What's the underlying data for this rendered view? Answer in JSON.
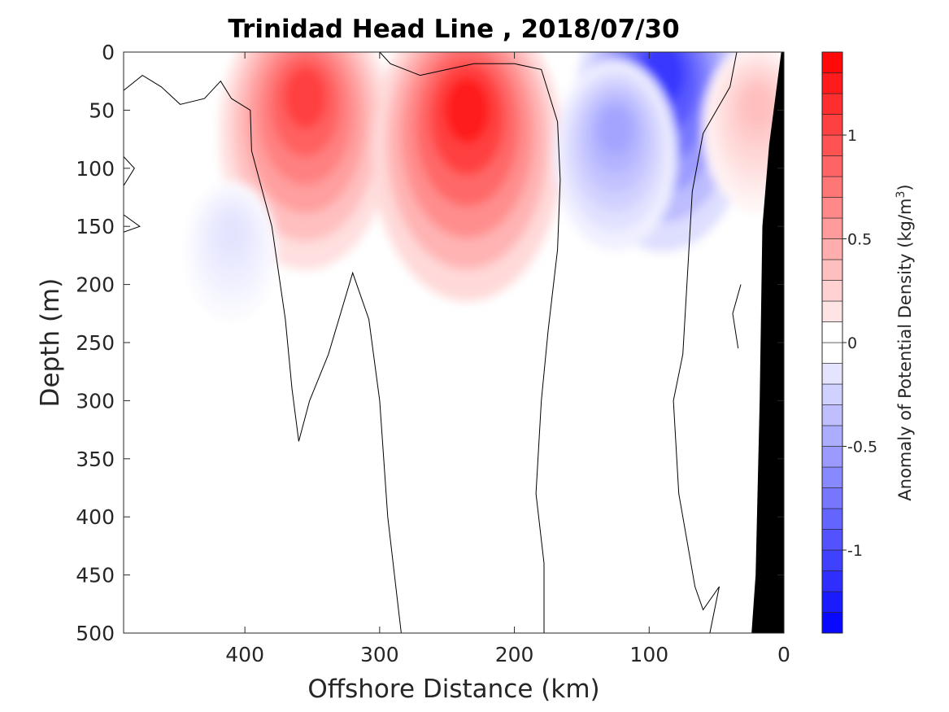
{
  "chart_data": {
    "type": "contourf",
    "title": "Trinidad Head Line , 2018/07/30",
    "xlabel": "Offshore Distance (km)",
    "ylabel": "Depth (m)",
    "xlim": [
      490,
      0
    ],
    "ylim": [
      500,
      0
    ],
    "x_reversed": true,
    "y_reversed": true,
    "xticks": [
      400,
      300,
      200,
      100,
      0
    ],
    "yticks": [
      0,
      50,
      100,
      150,
      200,
      250,
      300,
      350,
      400,
      450,
      500
    ],
    "colorbar": {
      "label": "Anomaly of Potential Density (kg/m",
      "label_superscript": "3",
      "label_suffix": ")",
      "range": [
        -1.4,
        1.4
      ],
      "step": 0.1,
      "ticks": [
        1,
        0.5,
        0,
        -0.5,
        -1
      ],
      "tick_labels": [
        "1",
        "0.5",
        "0",
        "-0.5",
        "-1"
      ],
      "cmap": "white-centered blue-red diverging",
      "neg_color": "#0000ff",
      "pos_color": "#ff0000"
    },
    "anomaly_features": [
      {
        "x": 355,
        "depth": 30,
        "value": 1.05
      },
      {
        "x": 235,
        "depth": 40,
        "value": 1.25
      },
      {
        "x": 90,
        "depth": 10,
        "value": -1.1
      },
      {
        "x": 125,
        "depth": 60,
        "value": -0.5
      },
      {
        "x": 410,
        "depth": 150,
        "value": -0.15
      },
      {
        "x": 20,
        "depth": 40,
        "value": 0.35
      }
    ],
    "zero_contours": [
      [
        [
          490,
          33
        ],
        [
          476,
          20
        ],
        [
          462,
          30
        ],
        [
          448,
          45
        ],
        [
          430,
          40
        ],
        [
          418,
          25
        ],
        [
          410,
          40
        ],
        [
          396,
          50
        ],
        [
          395,
          85
        ],
        [
          380,
          150
        ],
        [
          375,
          190
        ],
        [
          370,
          230
        ],
        [
          365,
          290
        ],
        [
          360,
          335
        ],
        [
          352,
          300
        ],
        [
          338,
          260
        ],
        [
          320,
          190
        ],
        [
          308,
          230
        ],
        [
          300,
          300
        ],
        [
          294,
          400
        ],
        [
          287,
          470
        ],
        [
          284,
          500
        ]
      ],
      [
        [
          300,
          0
        ],
        [
          292,
          10
        ],
        [
          270,
          20
        ],
        [
          250,
          15
        ],
        [
          230,
          10
        ],
        [
          200,
          10
        ],
        [
          180,
          15
        ],
        [
          168,
          60
        ],
        [
          166,
          110
        ],
        [
          168,
          170
        ],
        [
          175,
          240
        ],
        [
          180,
          300
        ],
        [
          184,
          380
        ],
        [
          178,
          440
        ],
        [
          178,
          500
        ]
      ],
      [
        [
          35,
          0
        ],
        [
          40,
          30
        ],
        [
          60,
          70
        ],
        [
          68,
          120
        ],
        [
          72,
          200
        ],
        [
          75,
          260
        ],
        [
          82,
          300
        ],
        [
          80,
          340
        ],
        [
          78,
          380
        ],
        [
          72,
          420
        ],
        [
          66,
          460
        ],
        [
          60,
          480
        ],
        [
          48,
          460
        ],
        [
          55,
          500
        ]
      ],
      [
        [
          490,
          90
        ],
        [
          482,
          100
        ],
        [
          490,
          115
        ]
      ],
      [
        [
          490,
          140
        ],
        [
          478,
          150
        ],
        [
          490,
          155
        ]
      ],
      [
        [
          32,
          200
        ],
        [
          38,
          225
        ],
        [
          34,
          255
        ]
      ]
    ],
    "bathymetry": {
      "fill": "#000000",
      "outline_depth_at_x": [
        [
          24,
          500
        ],
        [
          21,
          450
        ],
        [
          18,
          300
        ],
        [
          16,
          150
        ],
        [
          11,
          80
        ],
        [
          2,
          0
        ],
        [
          0,
          0
        ]
      ]
    }
  }
}
